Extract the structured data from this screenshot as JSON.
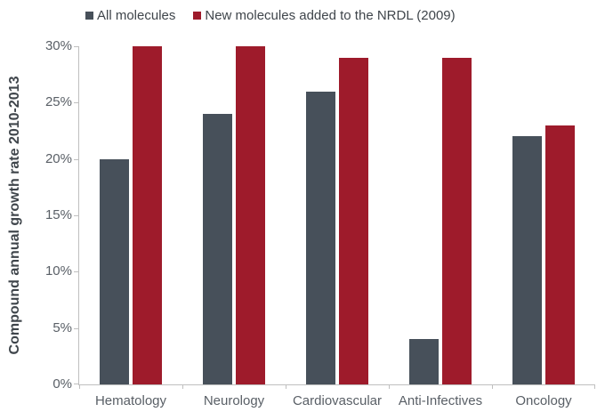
{
  "chart_data": {
    "type": "bar",
    "title": "",
    "xlabel": "",
    "ylabel": "Compound annual growth rate 2010-2013",
    "categories": [
      "Hematology",
      "Neurology",
      "Cardiovascular",
      "Anti-Infectives",
      "Oncology"
    ],
    "series": [
      {
        "name": "All molecules",
        "color": "#47505a",
        "values": [
          20,
          24,
          26,
          4,
          22
        ]
      },
      {
        "name": "New molecules added to the NRDL (2009)",
        "color": "#9e1b2b",
        "values": [
          30,
          30,
          29,
          29,
          23
        ]
      }
    ],
    "ylim": [
      0,
      30
    ],
    "y_tick_step": 5,
    "y_ticks": [
      "0%",
      "5%",
      "10%",
      "15%",
      "20%",
      "25%",
      "30%"
    ],
    "grid": false,
    "legend_position": "top"
  },
  "colors": {
    "background": "#ffffff",
    "axis_line": "#bfbfbf",
    "tick_text": "#595f66",
    "legend_text": "#3f454b",
    "axis_title_text": "#3f454b"
  }
}
